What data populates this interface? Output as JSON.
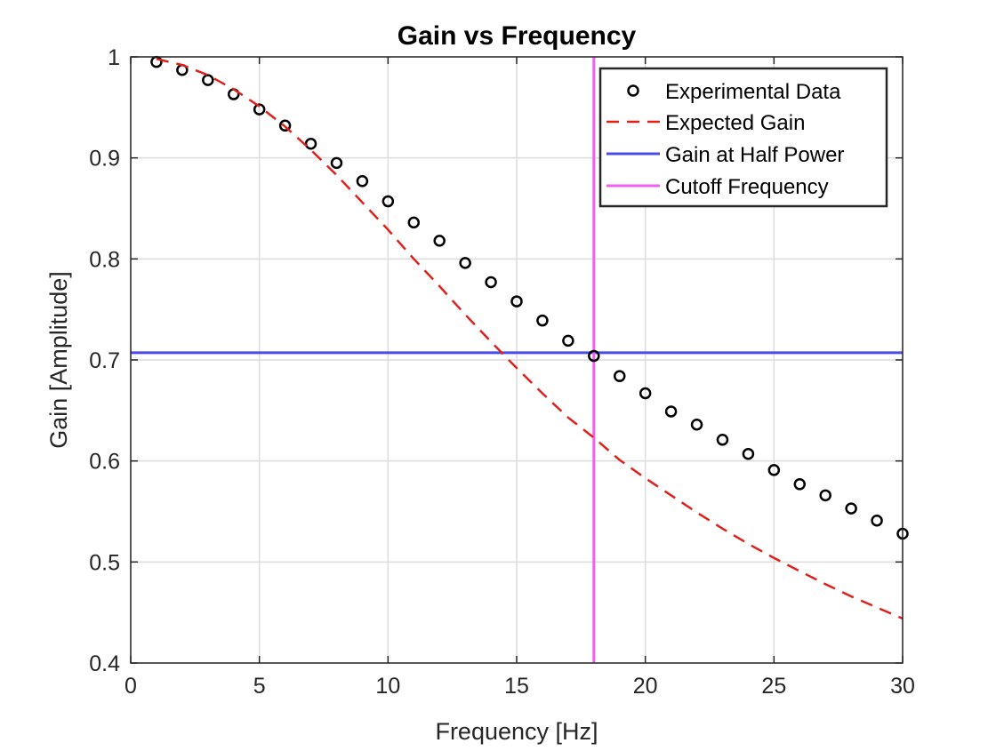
{
  "chart_data": {
    "type": "line",
    "title": "Gain vs Frequency",
    "xlabel": "Frequency [Hz]",
    "ylabel": "Gain [Amplitude]",
    "xlim": [
      0,
      30
    ],
    "ylim": [
      0.4,
      1.0
    ],
    "xticks": [
      0,
      5,
      10,
      15,
      20,
      25,
      30
    ],
    "yticks": [
      0.4,
      0.5,
      0.6,
      0.7,
      0.8,
      0.9,
      1.0
    ],
    "xtick_labels": [
      "0",
      "5",
      "10",
      "15",
      "20",
      "25",
      "30"
    ],
    "ytick_labels": [
      "0.4",
      "0.5",
      "0.6",
      "0.7",
      "0.8",
      "0.9",
      "1"
    ],
    "grid": true,
    "legend_position": "top-right",
    "series": [
      {
        "name": "Experimental Data",
        "style": "markers",
        "marker": "circle",
        "color": "#000000",
        "x": [
          1,
          2,
          3,
          4,
          5,
          6,
          7,
          8,
          9,
          10,
          11,
          12,
          13,
          14,
          15,
          16,
          17,
          18,
          19,
          20,
          21,
          22,
          23,
          24,
          25,
          26,
          27,
          28,
          29,
          30
        ],
        "y": [
          0.995,
          0.987,
          0.977,
          0.963,
          0.948,
          0.932,
          0.914,
          0.895,
          0.877,
          0.857,
          0.836,
          0.818,
          0.796,
          0.777,
          0.758,
          0.739,
          0.719,
          0.704,
          0.684,
          0.667,
          0.649,
          0.636,
          0.621,
          0.607,
          0.591,
          0.577,
          0.566,
          0.553,
          0.541,
          0.528
        ]
      },
      {
        "name": "Expected Gain",
        "style": "dashed",
        "color": "#e0201b",
        "x": [
          1,
          2,
          3,
          4,
          5,
          6,
          7,
          8,
          9,
          10,
          11,
          12,
          13,
          14,
          15,
          16,
          17,
          18,
          19,
          20,
          21,
          22,
          23,
          24,
          25,
          26,
          27,
          28,
          29,
          30
        ],
        "y": [
          0.998,
          0.992,
          0.982,
          0.968,
          0.951,
          0.931,
          0.908,
          0.883,
          0.856,
          0.829,
          0.8,
          0.773,
          0.745,
          0.718,
          0.692,
          0.667,
          0.643,
          0.623,
          0.601,
          0.583,
          0.566,
          0.549,
          0.533,
          0.518,
          0.504,
          0.491,
          0.478,
          0.466,
          0.455,
          0.444
        ]
      },
      {
        "name": "Gain at Half Power",
        "style": "hline",
        "color": "#4b4bea",
        "y": 0.7071
      },
      {
        "name": "Cutoff Frequency",
        "style": "vline",
        "color": "#f25ef2",
        "x": 18
      }
    ]
  }
}
